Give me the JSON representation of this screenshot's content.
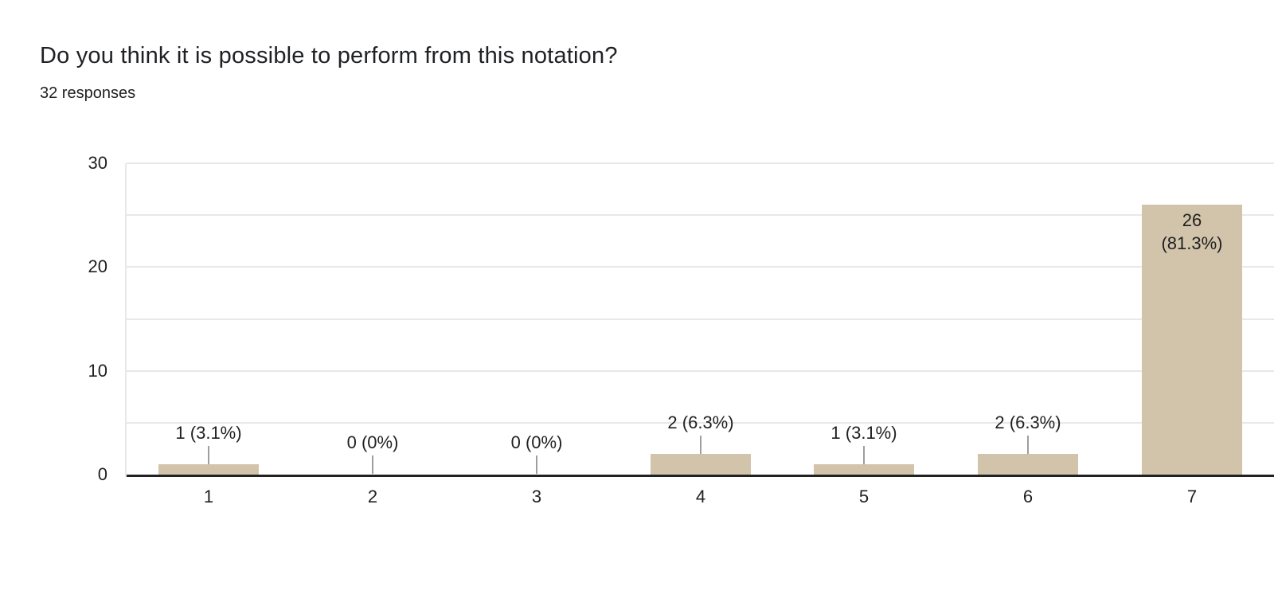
{
  "header": {
    "title": "Do you think it is possible to perform from this notation?",
    "subtitle": "32 responses"
  },
  "chart_data": {
    "type": "bar",
    "title": "Do you think it is possible to perform from this notation?",
    "subtitle": "32 responses",
    "categories": [
      "1",
      "2",
      "3",
      "4",
      "5",
      "6",
      "7"
    ],
    "values": [
      1,
      0,
      0,
      2,
      1,
      2,
      26
    ],
    "data_labels": [
      "1 (3.1%)",
      "0 (0%)",
      "0 (0%)",
      "2 (6.3%)",
      "1 (3.1%)",
      "2 (6.3%)",
      "26 (81.3%)"
    ],
    "label_placement": [
      "above",
      "above",
      "above",
      "above",
      "above",
      "above",
      "inside"
    ],
    "inside_label_lines": [
      "26",
      "(81.3%)"
    ],
    "xlabel": "",
    "ylabel": "",
    "ylim": [
      0,
      30
    ],
    "ytick_labels": [
      "0",
      "10",
      "20",
      "30"
    ],
    "grid_interval": 5,
    "grid": true,
    "legend": "none",
    "colors": {
      "bar": "#d2c3ab",
      "gridline": "#e8e8e8",
      "axis_line": "#212121",
      "callout_line": "#9e9e9e",
      "label_text": "#212121",
      "title_text": "#202124"
    }
  }
}
